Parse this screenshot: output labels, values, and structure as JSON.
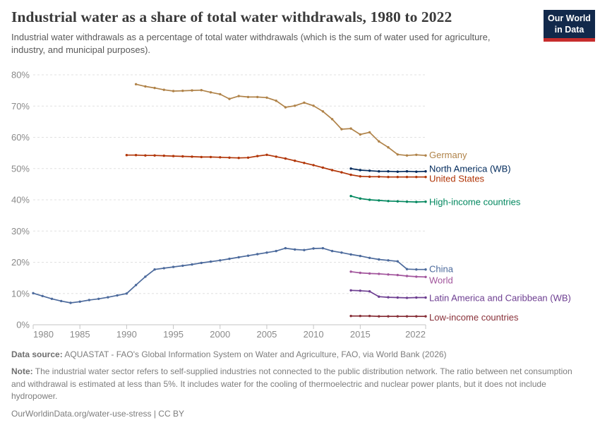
{
  "header": {
    "title": "Industrial water as a share of total water withdrawals, 1980 to 2022",
    "subtitle": "Industrial water withdrawals as a percentage of total water withdrawals (which is the sum of water used for agriculture, industry, and municipal purposes).",
    "logo": {
      "line1": "Our World",
      "line2": "in Data",
      "bg_color": "#12294B",
      "accent_color": "#C62C2C"
    }
  },
  "chart_data": {
    "type": "line",
    "title": "Industrial water as a share of total water withdrawals, 1980 to 2022",
    "xlabel": "",
    "ylabel": "",
    "x_ticks": [
      1980,
      1985,
      1990,
      1995,
      2000,
      2005,
      2010,
      2015,
      2022
    ],
    "y_ticks": [
      0,
      10,
      20,
      30,
      40,
      50,
      60,
      70,
      80
    ],
    "y_tick_suffix": "%",
    "xlim": [
      1980,
      2022
    ],
    "ylim": [
      0,
      80
    ],
    "grid": "dashed horizontal",
    "legend_position": "right-end-labels",
    "series": [
      {
        "name": "Germany",
        "color": "#B08349",
        "start_year": 1991,
        "label_dy": 0,
        "values": [
          77.0,
          76.3,
          75.8,
          75.2,
          74.8,
          74.9,
          75.0,
          75.1,
          74.4,
          73.8,
          72.3,
          73.2,
          72.9,
          72.9,
          72.7,
          71.7,
          69.6,
          70.1,
          71.1,
          70.1,
          68.3,
          65.8,
          62.6,
          62.8,
          60.9,
          61.6,
          58.7,
          56.8,
          54.5,
          54.2,
          54.4,
          54.2
        ]
      },
      {
        "name": "North America (WB)",
        "color": "#00295B",
        "start_year": 2014,
        "label_dy": -3,
        "values": [
          50.0,
          49.5,
          49.3,
          49.1,
          49.1,
          49.0,
          49.1,
          49.0,
          49.1
        ]
      },
      {
        "name": "United States",
        "color": "#B13507",
        "start_year": 1990,
        "label_dy": 3,
        "values": [
          54.3,
          54.3,
          54.2,
          54.2,
          54.1,
          54.0,
          53.9,
          53.8,
          53.7,
          53.7,
          53.6,
          53.5,
          53.4,
          53.5,
          54.0,
          54.4,
          53.8,
          53.2,
          52.5,
          51.8,
          51.1,
          50.3,
          49.5,
          48.8,
          48.0,
          47.5,
          47.4,
          47.4,
          47.3,
          47.3,
          47.3,
          47.3,
          47.3
        ]
      },
      {
        "name": "High-income countries",
        "color": "#00875E",
        "start_year": 2014,
        "label_dy": 1,
        "values": [
          41.2,
          40.4,
          40.0,
          39.8,
          39.6,
          39.5,
          39.4,
          39.3,
          39.4
        ]
      },
      {
        "name": "China",
        "color": "#4C6A9C",
        "start_year": 1980,
        "label_dy": 0,
        "values": [
          10.1,
          9.2,
          8.3,
          7.6,
          7.0,
          7.4,
          7.9,
          8.3,
          8.8,
          9.4,
          10.0,
          12.7,
          15.4,
          17.7,
          18.1,
          18.5,
          18.9,
          19.3,
          19.8,
          20.2,
          20.6,
          21.1,
          21.6,
          22.1,
          22.6,
          23.1,
          23.6,
          24.5,
          24.1,
          23.9,
          24.4,
          24.5,
          23.6,
          23.1,
          22.5,
          22.0,
          21.4,
          20.9,
          20.6,
          20.3,
          17.8,
          17.7,
          17.7
        ]
      },
      {
        "name": "World",
        "color": "#A2559C",
        "start_year": 2014,
        "label_dy": 5,
        "values": [
          17.0,
          16.6,
          16.4,
          16.3,
          16.1,
          15.9,
          15.6,
          15.4,
          15.3
        ]
      },
      {
        "name": "Latin America and Caribbean (WB)",
        "color": "#6D3E91",
        "start_year": 2014,
        "label_dy": 1,
        "values": [
          11.0,
          10.9,
          10.7,
          9.0,
          8.8,
          8.7,
          8.6,
          8.7,
          8.7
        ]
      },
      {
        "name": "Low-income countries",
        "color": "#883039",
        "start_year": 2014,
        "label_dy": 2,
        "values": [
          2.8,
          2.8,
          2.8,
          2.7,
          2.7,
          2.7,
          2.7,
          2.7,
          2.7
        ]
      }
    ]
  },
  "footer": {
    "data_source_label": "Data source:",
    "data_source": "AQUASTAT - FAO's Global Information System on Water and Agriculture, FAO, via World Bank (2026)",
    "note_label": "Note:",
    "note": "The industrial water sector refers to self-supplied industries not connected to the public distribution network. The ratio between net consumption and withdrawal is estimated at less than 5%. It includes water for the cooling of thermoelectric and nuclear power plants, but it does not include hydropower.",
    "link": "OurWorldinData.org/water-use-stress | CC BY"
  }
}
